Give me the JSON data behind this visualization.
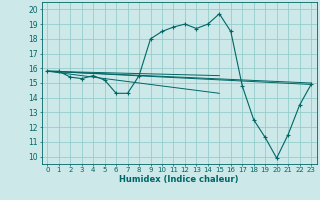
{
  "title": "",
  "xlabel": "Humidex (Indice chaleur)",
  "bg_color": "#cce8e8",
  "line_color": "#006666",
  "xlim": [
    -0.5,
    23.5
  ],
  "ylim": [
    9.5,
    20.5
  ],
  "xticks": [
    0,
    1,
    2,
    3,
    4,
    5,
    6,
    7,
    8,
    9,
    10,
    11,
    12,
    13,
    14,
    15,
    16,
    17,
    18,
    19,
    20,
    21,
    22,
    23
  ],
  "yticks": [
    10,
    11,
    12,
    13,
    14,
    15,
    16,
    17,
    18,
    19,
    20
  ],
  "series": [
    [
      0,
      15.8
    ],
    [
      1,
      15.8
    ],
    [
      2,
      15.4
    ],
    [
      3,
      15.3
    ],
    [
      4,
      15.5
    ],
    [
      5,
      15.2
    ],
    [
      6,
      14.3
    ],
    [
      7,
      14.3
    ],
    [
      8,
      15.5
    ],
    [
      9,
      18.0
    ],
    [
      10,
      18.5
    ],
    [
      11,
      18.8
    ],
    [
      12,
      19.0
    ],
    [
      13,
      18.7
    ],
    [
      14,
      19.0
    ],
    [
      15,
      19.7
    ],
    [
      16,
      18.5
    ],
    [
      17,
      14.8
    ],
    [
      18,
      12.5
    ],
    [
      19,
      11.3
    ],
    [
      20,
      9.9
    ],
    [
      21,
      11.5
    ],
    [
      22,
      13.5
    ],
    [
      23,
      14.9
    ]
  ],
  "trend_lines": [
    {
      "x": [
        0,
        23
      ],
      "y": [
        15.8,
        15.0
      ]
    },
    {
      "x": [
        0,
        23
      ],
      "y": [
        15.8,
        14.9
      ]
    },
    {
      "x": [
        0,
        15
      ],
      "y": [
        15.8,
        15.5
      ]
    },
    {
      "x": [
        0,
        15
      ],
      "y": [
        15.8,
        14.3
      ]
    }
  ]
}
